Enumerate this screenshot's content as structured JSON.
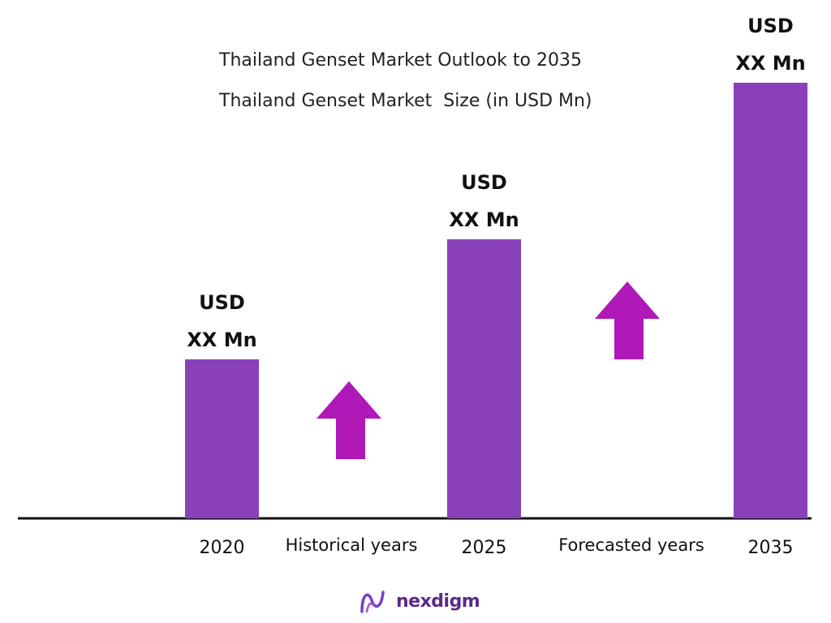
{
  "chart_data": {
    "type": "bar",
    "title": "Thailand Genset Market Outlook to 2035",
    "subtitle": "Thailand Genset Market  Size (in USD Mn)",
    "categories": [
      "2020",
      "2025",
      "2035"
    ],
    "values": [
      196,
      344,
      537
    ],
    "data_labels": [
      [
        "USD",
        "XX Mn"
      ],
      [
        "USD",
        "XX Mn"
      ],
      [
        "USD",
        "XX Mn"
      ]
    ],
    "period_labels": [
      "Historical years",
      "Forecasted years"
    ],
    "bar_color": "#8a40b8",
    "arrow_color": "#b018b8",
    "ylim": [
      0,
      560
    ],
    "grid": false
  },
  "brand": {
    "name": "nexdigm",
    "color": "#5b2a86"
  }
}
